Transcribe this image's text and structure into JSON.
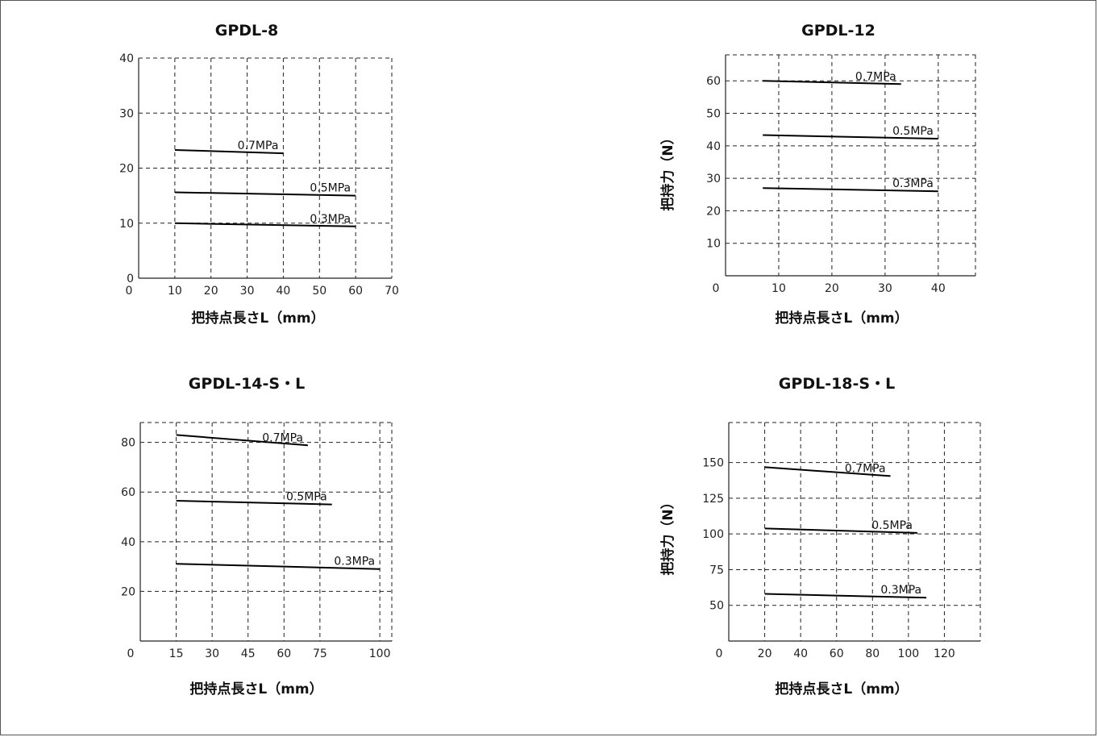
{
  "chart_data": [
    {
      "type": "line",
      "title": "GPDL-8",
      "xlabel": "把持点長さL（mm）",
      "ylabel": "",
      "x_ticks": [
        0,
        10,
        20,
        30,
        40,
        50,
        60,
        70
      ],
      "y_ticks": [
        0,
        10,
        20,
        30,
        40
      ],
      "xlim": [
        0,
        70
      ],
      "ylim": [
        0,
        40
      ],
      "grid": true,
      "series": [
        {
          "name": "0.7MPa",
          "x": [
            10,
            40
          ],
          "y": [
            23.3,
            22.7
          ]
        },
        {
          "name": "0.5MPa",
          "x": [
            10,
            60
          ],
          "y": [
            15.6,
            15.0
          ]
        },
        {
          "name": "0.3MPa",
          "x": [
            10,
            60
          ],
          "y": [
            10.0,
            9.4
          ]
        }
      ]
    },
    {
      "type": "line",
      "title": "GPDL-12",
      "xlabel": "把持点長さL（mm）",
      "ylabel": "把持力（N）",
      "x_ticks": [
        0,
        10,
        20,
        30,
        40
      ],
      "y_ticks": [
        10,
        20,
        30,
        40,
        50,
        60
      ],
      "xlim": [
        0,
        47
      ],
      "ylim": [
        0,
        68
      ],
      "grid": true,
      "series": [
        {
          "name": "0.7MPa",
          "x": [
            7,
            33
          ],
          "y": [
            60.0,
            59.0
          ]
        },
        {
          "name": "0.5MPa",
          "x": [
            7,
            40
          ],
          "y": [
            43.3,
            42.2
          ]
        },
        {
          "name": "0.3MPa",
          "x": [
            7,
            40
          ],
          "y": [
            27.0,
            26.0
          ]
        }
      ]
    },
    {
      "type": "line",
      "title": "GPDL-14-S・L",
      "xlabel": "把持点長さL（mm）",
      "ylabel": "",
      "x_ticks": [
        0,
        15,
        30,
        45,
        60,
        75,
        100
      ],
      "y_ticks": [
        20,
        40,
        60,
        80
      ],
      "xlim": [
        0,
        105
      ],
      "ylim": [
        0,
        88
      ],
      "grid": true,
      "series": [
        {
          "name": "0.7MPa",
          "x": [
            15,
            70
          ],
          "y": [
            83.0,
            78.8
          ]
        },
        {
          "name": "0.5MPa",
          "x": [
            15,
            80
          ],
          "y": [
            56.5,
            55.0
          ]
        },
        {
          "name": "0.3MPa",
          "x": [
            15,
            100
          ],
          "y": [
            31.1,
            29.0
          ]
        }
      ]
    },
    {
      "type": "line",
      "title": "GPDL-18-S・L",
      "xlabel": "把持点長さL（mm）",
      "ylabel": "把持力（N）",
      "x_ticks": [
        0,
        20,
        40,
        60,
        80,
        100,
        120
      ],
      "y_ticks": [
        50,
        75,
        100,
        125,
        150
      ],
      "xlim": [
        0,
        140
      ],
      "ylim": [
        25,
        178
      ],
      "grid": true,
      "series": [
        {
          "name": "0.7MPa",
          "x": [
            20,
            90
          ],
          "y": [
            146.7,
            140.5
          ]
        },
        {
          "name": "0.5MPa",
          "x": [
            20,
            105
          ],
          "y": [
            103.8,
            100.7
          ]
        },
        {
          "name": "0.3MPa",
          "x": [
            20,
            110
          ],
          "y": [
            58.0,
            55.4
          ]
        }
      ]
    }
  ]
}
